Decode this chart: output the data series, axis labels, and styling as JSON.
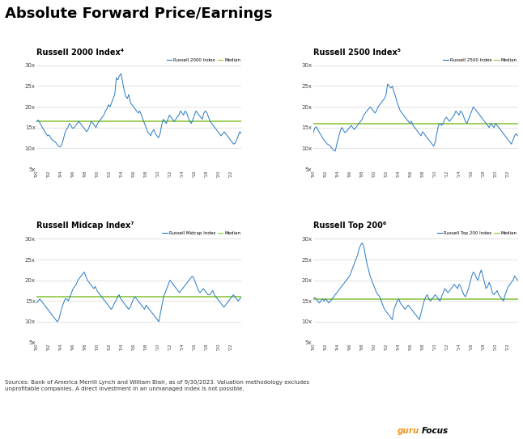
{
  "title": "Absolute Forward Price/Earnings",
  "background_color": "#ffffff",
  "line_color": "#2878c3",
  "median_color": "#8dc63f",
  "grid_color": "#cccccc",
  "text_color": "#000000",
  "footer_text": "Sources: Bank of America Merrill Lynch and William Blair, as of 9/30/2023. Valuation methodology excludes\nunprofitable companies. A direct investment in an unmanaged index is not possible.",
  "gurufocus_color_guru": "#f7941d",
  "gurufocus_color_focus": "#000000",
  "subplots": [
    {
      "title": "Russell 2000 Index⁴",
      "legend_label": "Russell 2000 Index",
      "median": 16.5,
      "ylim": [
        5,
        32
      ],
      "yticks": [
        5,
        10,
        15,
        20,
        25,
        30
      ],
      "ytick_labels": [
        "5x",
        "10x",
        "15x",
        "20x",
        "25x",
        "30x"
      ],
      "data": [
        16.5,
        16.8,
        16.2,
        15.5,
        14.8,
        14.2,
        13.5,
        13.0,
        13.2,
        12.5,
        12.0,
        11.8,
        11.5,
        11.0,
        10.5,
        10.3,
        10.8,
        12.0,
        13.5,
        14.5,
        15.0,
        16.0,
        15.5,
        14.8,
        15.0,
        15.5,
        16.0,
        16.5,
        16.0,
        15.5,
        15.0,
        14.5,
        14.0,
        14.5,
        15.5,
        16.5,
        16.0,
        15.5,
        15.0,
        16.0,
        16.5,
        17.0,
        17.5,
        18.0,
        19.0,
        19.5,
        20.5,
        20.0,
        21.0,
        22.0,
        23.0,
        27.0,
        26.5,
        27.5,
        28.0,
        26.0,
        24.0,
        22.5,
        22.0,
        23.0,
        21.0,
        20.5,
        20.0,
        19.5,
        19.0,
        18.5,
        19.0,
        18.0,
        17.0,
        16.0,
        15.0,
        14.0,
        13.5,
        13.0,
        14.0,
        14.5,
        13.5,
        13.0,
        12.5,
        13.5,
        15.5,
        17.0,
        16.5,
        16.0,
        17.0,
        18.0,
        17.5,
        17.0,
        16.5,
        17.0,
        17.5,
        18.0,
        19.0,
        18.5,
        18.0,
        19.0,
        18.5,
        17.5,
        16.5,
        16.0,
        17.0,
        18.0,
        19.0,
        18.5,
        18.0,
        17.5,
        17.0,
        18.5,
        19.0,
        18.5,
        17.5,
        16.5,
        16.0,
        15.5,
        15.0,
        14.5,
        14.0,
        13.5,
        13.0,
        13.5,
        14.0,
        13.5,
        13.0,
        12.5,
        12.0,
        11.5,
        11.0,
        11.2,
        12.0,
        13.0,
        14.0,
        13.5
      ]
    },
    {
      "title": "Russell 2500 Index⁵",
      "legend_label": "Russell 2500 Index",
      "median": 16.0,
      "ylim": [
        5,
        32
      ],
      "yticks": [
        5,
        10,
        15,
        20,
        25,
        30
      ],
      "ytick_labels": [
        "5x",
        "10x",
        "15x",
        "20x",
        "25x",
        "30x"
      ],
      "data": [
        13.5,
        14.8,
        15.2,
        14.5,
        13.8,
        13.2,
        12.5,
        12.0,
        11.5,
        11.0,
        10.8,
        10.5,
        10.0,
        9.5,
        9.3,
        11.0,
        12.5,
        14.0,
        15.0,
        14.5,
        13.8,
        14.0,
        14.5,
        15.0,
        15.5,
        15.0,
        14.5,
        15.0,
        15.5,
        16.0,
        16.5,
        17.0,
        18.0,
        18.5,
        19.0,
        19.5,
        20.0,
        19.5,
        19.0,
        18.5,
        19.0,
        20.0,
        20.5,
        21.0,
        21.5,
        22.0,
        23.0,
        25.5,
        25.0,
        24.5,
        25.0,
        23.5,
        22.5,
        21.0,
        20.0,
        19.0,
        18.5,
        18.0,
        17.5,
        17.0,
        16.5,
        16.0,
        16.5,
        15.5,
        15.0,
        14.5,
        14.0,
        13.5,
        13.0,
        14.0,
        13.5,
        13.0,
        12.5,
        12.0,
        11.5,
        11.0,
        10.5,
        11.5,
        13.5,
        15.5,
        16.0,
        15.5,
        16.0,
        17.0,
        17.5,
        17.0,
        16.5,
        17.0,
        17.5,
        18.0,
        19.0,
        18.5,
        18.0,
        19.0,
        18.5,
        17.5,
        16.5,
        16.0,
        17.0,
        18.0,
        19.0,
        20.0,
        19.5,
        19.0,
        18.5,
        18.0,
        17.5,
        17.0,
        16.5,
        16.0,
        15.5,
        15.0,
        16.0,
        15.5,
        15.0,
        16.0,
        15.5,
        15.0,
        14.5,
        14.0,
        13.5,
        13.0,
        12.5,
        12.0,
        11.5,
        11.0,
        12.0,
        13.0,
        13.5,
        13.0
      ]
    },
    {
      "title": "Russell Midcap Index⁷",
      "legend_label": "Russell Midcap Index",
      "median": 16.0,
      "ylim": [
        5,
        32
      ],
      "yticks": [
        5,
        10,
        15,
        20,
        25,
        30
      ],
      "ytick_labels": [
        "5x",
        "10x",
        "15x",
        "20x",
        "25x",
        "30x"
      ],
      "data": [
        14.5,
        15.0,
        15.5,
        15.0,
        14.5,
        14.0,
        13.5,
        13.0,
        12.5,
        12.0,
        11.5,
        11.0,
        10.5,
        10.0,
        10.5,
        12.0,
        13.5,
        14.5,
        15.5,
        15.5,
        15.0,
        16.0,
        17.0,
        18.0,
        18.5,
        19.0,
        20.0,
        20.5,
        21.0,
        21.5,
        22.0,
        21.0,
        20.0,
        19.5,
        19.0,
        18.5,
        18.0,
        18.5,
        17.5,
        17.0,
        16.5,
        16.0,
        15.5,
        15.0,
        14.5,
        14.0,
        13.5,
        13.0,
        13.5,
        14.5,
        15.0,
        16.0,
        16.5,
        15.5,
        15.0,
        14.5,
        14.0,
        13.5,
        13.0,
        13.5,
        14.5,
        15.5,
        16.0,
        15.5,
        15.0,
        14.5,
        14.0,
        13.5,
        13.0,
        14.0,
        13.5,
        13.0,
        12.5,
        12.0,
        11.5,
        11.0,
        10.5,
        10.0,
        12.0,
        14.0,
        16.0,
        17.0,
        18.0,
        19.0,
        20.0,
        19.5,
        19.0,
        18.5,
        18.0,
        17.5,
        17.0,
        17.5,
        18.0,
        18.5,
        19.0,
        19.5,
        20.0,
        20.5,
        21.0,
        20.5,
        19.5,
        18.5,
        17.5,
        17.0,
        17.5,
        18.0,
        17.5,
        17.0,
        16.5,
        16.5,
        17.0,
        17.5,
        16.5,
        16.0,
        15.5,
        15.0,
        14.5,
        14.0,
        13.5,
        14.0,
        14.5,
        15.0,
        15.5,
        16.0,
        16.5,
        16.0,
        15.5,
        15.0,
        15.5,
        15.8
      ]
    },
    {
      "title": "Russell Top 200⁶",
      "legend_label": "Russell Top 200 Index",
      "median": 15.5,
      "ylim": [
        5,
        32
      ],
      "yticks": [
        5,
        10,
        15,
        20,
        25,
        30
      ],
      "ytick_labels": [
        "5x",
        "10x",
        "15x",
        "20x",
        "25x",
        "30x"
      ],
      "data": [
        15.5,
        15.8,
        15.5,
        15.0,
        14.5,
        15.0,
        15.5,
        15.0,
        15.5,
        15.0,
        14.5,
        15.0,
        15.5,
        16.0,
        16.5,
        17.0,
        17.5,
        18.0,
        18.5,
        19.0,
        19.5,
        20.0,
        20.5,
        21.0,
        22.0,
        23.0,
        24.0,
        25.0,
        26.0,
        27.5,
        28.5,
        29.0,
        28.0,
        26.0,
        24.0,
        22.5,
        21.0,
        20.0,
        19.0,
        18.0,
        17.0,
        16.5,
        16.0,
        15.0,
        14.0,
        13.0,
        12.5,
        12.0,
        11.5,
        11.0,
        10.5,
        13.0,
        14.0,
        15.0,
        15.5,
        14.5,
        14.0,
        13.5,
        13.0,
        13.5,
        14.0,
        13.5,
        13.0,
        12.5,
        12.0,
        11.5,
        11.0,
        10.5,
        12.0,
        13.5,
        15.0,
        16.0,
        16.5,
        15.5,
        15.0,
        15.5,
        16.0,
        16.5,
        16.0,
        15.5,
        15.0,
        16.0,
        17.0,
        18.0,
        17.5,
        17.0,
        17.5,
        18.0,
        18.5,
        19.0,
        18.5,
        18.0,
        19.0,
        18.5,
        17.5,
        16.5,
        16.0,
        17.0,
        18.0,
        19.5,
        21.0,
        22.0,
        21.5,
        20.5,
        20.0,
        21.5,
        22.5,
        21.0,
        19.5,
        18.0,
        18.5,
        19.5,
        18.5,
        17.0,
        16.5,
        17.0,
        17.5,
        16.5,
        16.0,
        15.5,
        15.0,
        16.5,
        17.5,
        18.5,
        19.0,
        19.5,
        20.0,
        21.0,
        20.5,
        20.0
      ]
    }
  ],
  "xtick_labels_even": [
    "90",
    "92",
    "94",
    "96",
    "98",
    "00",
    "02",
    "04",
    "06",
    "08",
    "10",
    "12",
    "14",
    "16",
    "18",
    "20",
    "22"
  ],
  "n_years": 34,
  "start_year": 1990
}
